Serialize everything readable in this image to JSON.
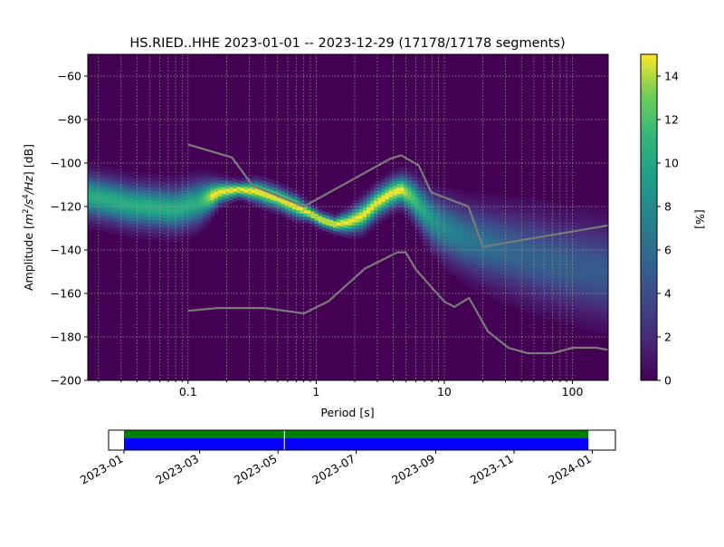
{
  "chart_data": [
    {
      "type": "heatmap",
      "title": "HS.RIED..HHE   2023-01-01 -- 2023-12-29  (17178/17178 segments)",
      "xlabel": "Period [s]",
      "ylabel_parts": {
        "prefix": "Amplitude [",
        "m": "m",
        "two": "2",
        "slash": "/",
        "s": "s",
        "four": "4",
        "hz": "/Hz",
        "suffix": "] [dB]"
      },
      "x_scale": "log",
      "xlim": [
        0.0165,
        190
      ],
      "ylim": [
        -200,
        -50
      ],
      "x_ticks": [
        {
          "value": 0.1,
          "label": "0.1"
        },
        {
          "value": 1,
          "label": "1"
        },
        {
          "value": 10,
          "label": "10"
        },
        {
          "value": 100,
          "label": "100"
        }
      ],
      "y_ticks": [
        {
          "value": -60,
          "label": "−60"
        },
        {
          "value": -80,
          "label": "−80"
        },
        {
          "value": -100,
          "label": "−100"
        },
        {
          "value": -120,
          "label": "−120"
        },
        {
          "value": -140,
          "label": "−140"
        },
        {
          "value": -160,
          "label": "−160"
        },
        {
          "value": -180,
          "label": "−180"
        },
        {
          "value": -200,
          "label": "−200"
        }
      ],
      "grid": true,
      "colormap": "viridis",
      "colorbar": {
        "label": "[%]",
        "range": [
          0,
          15
        ],
        "ticks": [
          {
            "value": 0,
            "label": "0"
          },
          {
            "value": 2,
            "label": "2"
          },
          {
            "value": 4,
            "label": "4"
          },
          {
            "value": 6,
            "label": "6"
          },
          {
            "value": 8,
            "label": "8"
          },
          {
            "value": 10,
            "label": "10"
          },
          {
            "value": 12,
            "label": "12"
          },
          {
            "value": 14,
            "label": "14"
          }
        ]
      },
      "mode_curve": {
        "period": [
          0.0165,
          0.025,
          0.035,
          0.05,
          0.08,
          0.12,
          0.18,
          0.25,
          0.35,
          0.5,
          0.7,
          0.9,
          1.1,
          1.4,
          1.8,
          2.3,
          3,
          3.8,
          4.6,
          5.5,
          6.5,
          8,
          10,
          14,
          20,
          30,
          50,
          80,
          120,
          190
        ],
        "db": [
          -115,
          -117,
          -119,
          -120,
          -121,
          -118,
          -113,
          -112,
          -113,
          -116,
          -120,
          -123,
          -126,
          -128,
          -127,
          -124,
          -118,
          -114,
          -112,
          -115,
          -120,
          -126,
          -130,
          -134,
          -137,
          -140,
          -143,
          -146,
          -148,
          -150
        ],
        "spread_db": [
          6,
          6,
          6,
          6,
          6,
          6,
          3,
          2,
          3,
          3,
          3,
          2,
          2,
          2,
          3,
          4,
          4,
          4,
          4,
          5,
          6,
          7,
          8,
          9,
          10,
          11,
          12,
          12,
          13,
          13
        ]
      },
      "nhnm": {
        "period": [
          0.1,
          0.22,
          0.32,
          0.8,
          3.8,
          4.6,
          6.3,
          7.9,
          15.4,
          20,
          354.8
        ],
        "db": [
          -91.5,
          -97.4,
          -110.5,
          -120,
          -98,
          -96.5,
          -101,
          -113.5,
          -120,
          -138.5,
          -126
        ]
      },
      "nlnm": {
        "period": [
          0.1,
          0.17,
          0.4,
          0.8,
          1.24,
          2.4,
          4.3,
          5,
          6,
          10,
          12,
          15.6,
          21.9,
          31.6,
          45,
          70,
          101,
          154,
          190
        ],
        "db": [
          -168,
          -166.7,
          -166.7,
          -169.2,
          -163.7,
          -148.6,
          -141.1,
          -141.1,
          -149,
          -163.8,
          -166.2,
          -162.1,
          -177.5,
          -185,
          -187.5,
          -187.5,
          -185,
          -185,
          -186
        ]
      }
    },
    {
      "type": "timeline",
      "x_ticks": [
        {
          "value": "2023-01-01",
          "label": "2023-01"
        },
        {
          "value": "2023-03-01",
          "label": "2023-03"
        },
        {
          "value": "2023-05-01",
          "label": "2023-05"
        },
        {
          "value": "2023-07-01",
          "label": "2023-07"
        },
        {
          "value": "2023-09-01",
          "label": "2023-09"
        },
        {
          "value": "2023-11-01",
          "label": "2023-11"
        },
        {
          "value": "2024-01-01",
          "label": "2024-01"
        }
      ],
      "xlim": [
        "2022-12-20",
        "2024-01-19"
      ],
      "coverage": {
        "start": "2023-01-01",
        "end": "2023-12-29",
        "gaps": [
          "2023-05-06"
        ]
      },
      "colors": {
        "data": "#0000ff",
        "segments": "#008000"
      }
    }
  ]
}
